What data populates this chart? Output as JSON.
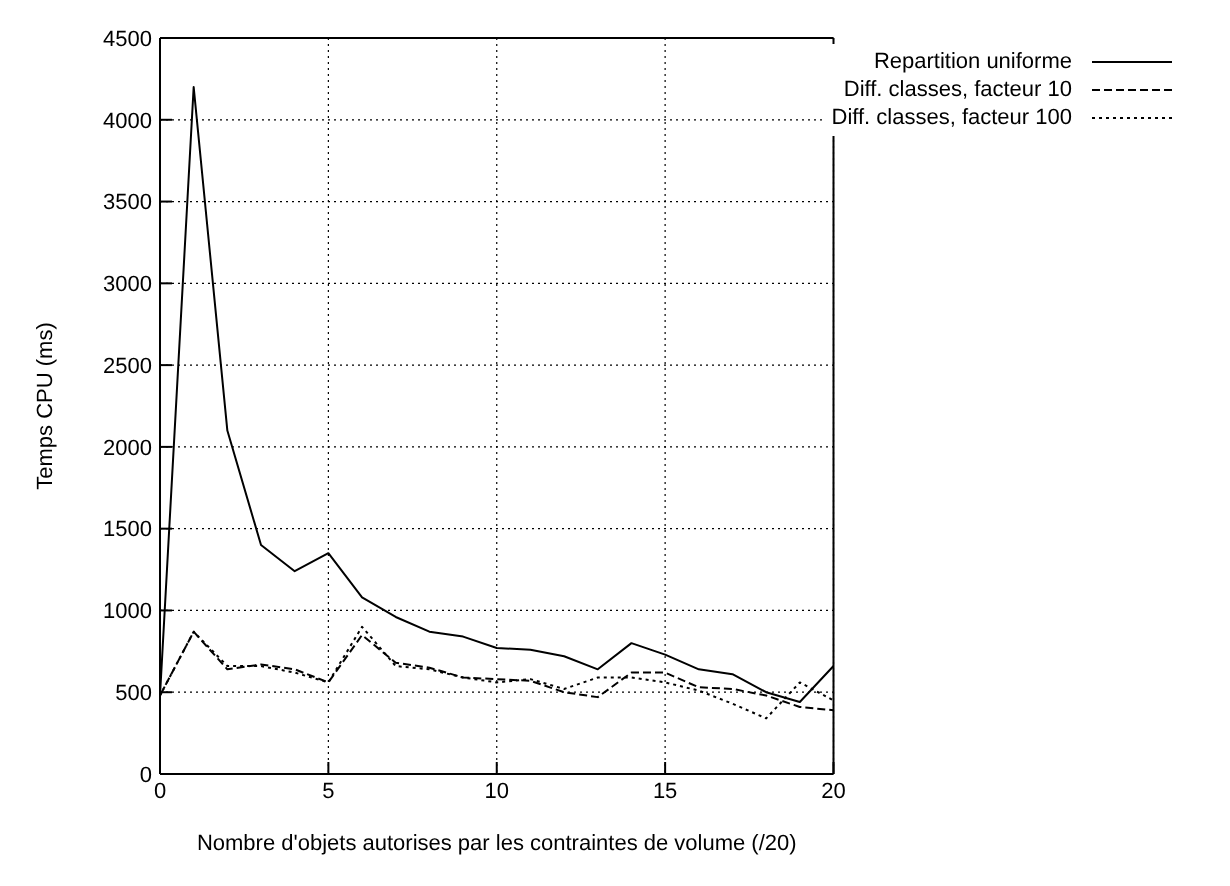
{
  "chart_data": {
    "type": "line",
    "xlabel": "Nombre d'objets autorises par les contraintes de volume (/20)",
    "ylabel": "Temps CPU (ms)",
    "x": [
      0,
      1,
      2,
      3,
      4,
      5,
      6,
      7,
      8,
      9,
      10,
      11,
      12,
      13,
      14,
      15,
      16,
      17,
      18,
      19,
      20
    ],
    "series": [
      {
        "name": "Repartition uniforme",
        "color": "#000000",
        "line_style": "solid",
        "values": [
          480,
          4200,
          2100,
          1400,
          1240,
          1350,
          1080,
          960,
          870,
          840,
          770,
          760,
          720,
          640,
          800,
          730,
          640,
          610,
          500,
          440,
          660
        ]
      },
      {
        "name": "Diff. classes, facteur 10",
        "color": "#000000",
        "line_style": "dashed",
        "values": [
          480,
          870,
          640,
          670,
          640,
          560,
          850,
          680,
          650,
          590,
          580,
          570,
          500,
          470,
          620,
          620,
          530,
          520,
          480,
          410,
          390
        ]
      },
      {
        "name": "Diff. classes, facteur 100",
        "color": "#000000",
        "line_style": "dotted",
        "values": [
          480,
          870,
          660,
          660,
          620,
          560,
          900,
          660,
          640,
          590,
          560,
          580,
          520,
          590,
          590,
          560,
          510,
          430,
          340,
          560,
          450
        ]
      }
    ],
    "xlim": [
      0,
      20
    ],
    "xticks": [
      0,
      5,
      10,
      15,
      20
    ],
    "ylim": [
      0,
      4500
    ],
    "yticks": [
      0,
      500,
      1000,
      1500,
      2000,
      2500,
      3000,
      3500,
      4000,
      4500
    ],
    "grid": true,
    "legend": "top right",
    "marker": "none"
  }
}
